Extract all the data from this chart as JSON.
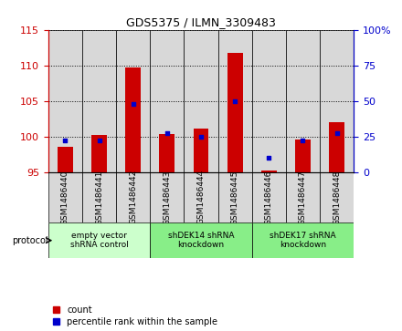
{
  "title": "GDS5375 / ILMN_3309483",
  "samples": [
    "GSM1486440",
    "GSM1486441",
    "GSM1486442",
    "GSM1486443",
    "GSM1486444",
    "GSM1486445",
    "GSM1486446",
    "GSM1486447",
    "GSM1486448"
  ],
  "count_values": [
    98.5,
    100.2,
    109.7,
    100.3,
    101.1,
    111.7,
    95.2,
    99.6,
    102.0
  ],
  "count_base": 95,
  "percentile_values": [
    22,
    22,
    48,
    27,
    25,
    50,
    10,
    22,
    27
  ],
  "ylim_left": [
    95,
    115
  ],
  "ylim_right": [
    0,
    100
  ],
  "yticks_left": [
    95,
    100,
    105,
    110,
    115
  ],
  "yticks_right": [
    0,
    25,
    50,
    75,
    100
  ],
  "left_tick_color": "#cc0000",
  "right_tick_color": "#0000cc",
  "bar_color": "#cc0000",
  "dot_color": "#0000cc",
  "sample_box_color": "#d8d8d8",
  "protocol_groups": [
    {
      "label": "empty vector\nshRNA control",
      "start": 0,
      "end": 3,
      "color": "#ccffcc"
    },
    {
      "label": "shDEK14 shRNA\nknockdown",
      "start": 3,
      "end": 6,
      "color": "#88ee88"
    },
    {
      "label": "shDEK17 shRNA\nknockdown",
      "start": 6,
      "end": 9,
      "color": "#88ee88"
    }
  ],
  "legend_count_label": "count",
  "legend_pct_label": "percentile rank within the sample",
  "protocol_label": "protocol"
}
